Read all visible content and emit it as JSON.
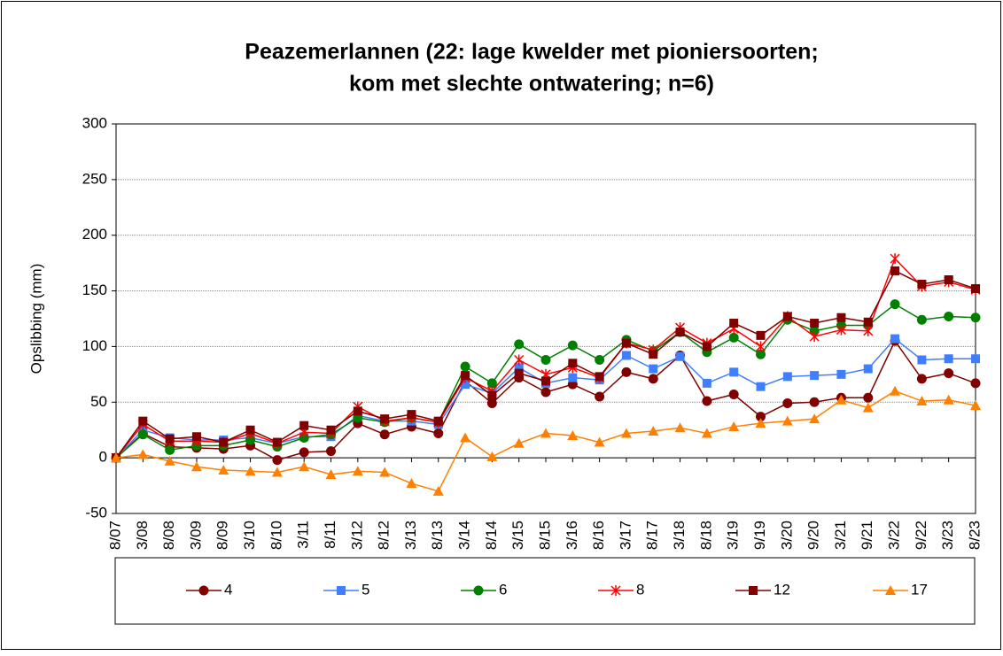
{
  "chart_data": {
    "type": "line",
    "title": [
      "Peazemerlannen (22: lage kwelder met pioniersoorten;",
      "kom met slechte ontwatering; n=6)"
    ],
    "y_label": "Opslibbing (mm)",
    "categories": [
      "8/07",
      "3/08",
      "8/08",
      "3/09",
      "8/09",
      "3/10",
      "8/10",
      "3/11",
      "8/11",
      "3/12",
      "8/12",
      "3/13",
      "8/13",
      "3/14",
      "8/14",
      "3/15",
      "8/15",
      "3/16",
      "8/16",
      "3/17",
      "8/17",
      "3/18",
      "8/18",
      "3/19",
      "9/19",
      "3/20",
      "9/20",
      "3/21",
      "9/21",
      "3/22",
      "9/22",
      "3/23",
      "8/23"
    ],
    "series": [
      {
        "name": "4",
        "color": "#800000",
        "marker": "circle",
        "values": [
          0,
          22,
          10,
          9,
          8,
          11,
          -2,
          5,
          6,
          31,
          21,
          28,
          22,
          69,
          49,
          72,
          59,
          66,
          55,
          77,
          71,
          92,
          51,
          57,
          37,
          49,
          50,
          54,
          54,
          105,
          71,
          76,
          67
        ]
      },
      {
        "name": "5",
        "color": "#3f7fff",
        "marker": "square",
        "values": [
          0,
          25,
          18,
          16,
          16,
          18,
          13,
          19,
          19,
          38,
          33,
          33,
          30,
          66,
          58,
          81,
          67,
          72,
          70,
          92,
          80,
          91,
          67,
          77,
          64,
          73,
          74,
          75,
          80,
          107,
          88,
          89,
          89
        ]
      },
      {
        "name": "6",
        "color": "#008000",
        "marker": "circle",
        "values": [
          0,
          21,
          7,
          11,
          11,
          16,
          10,
          18,
          21,
          36,
          32,
          36,
          32,
          82,
          67,
          102,
          88,
          101,
          88,
          106,
          96,
          113,
          95,
          108,
          93,
          124,
          114,
          119,
          119,
          138,
          124,
          127,
          126
        ]
      },
      {
        "name": "8",
        "color": "#ff0000",
        "marker": "star",
        "values": [
          0,
          30,
          15,
          15,
          14,
          22,
          13,
          23,
          22,
          46,
          33,
          36,
          32,
          72,
          60,
          88,
          75,
          81,
          72,
          103,
          97,
          117,
          103,
          116,
          100,
          127,
          109,
          115,
          114,
          179,
          154,
          158,
          151
        ]
      },
      {
        "name": "12",
        "color": "#800000",
        "marker": "square",
        "values": [
          0,
          33,
          17,
          19,
          14,
          25,
          14,
          29,
          25,
          42,
          35,
          39,
          33,
          74,
          56,
          76,
          69,
          85,
          73,
          103,
          93,
          113,
          100,
          121,
          110,
          127,
          121,
          126,
          122,
          168,
          156,
          160,
          152
        ]
      },
      {
        "name": "17",
        "color": "#ff8000",
        "marker": "triangle",
        "values": [
          0,
          3,
          -3,
          -8,
          -11,
          -12,
          -13,
          -8,
          -15,
          -12,
          -13,
          -23,
          -30,
          18,
          1,
          13,
          22,
          20,
          14,
          22,
          24,
          27,
          22,
          28,
          31,
          33,
          35,
          52,
          45,
          60,
          51,
          52,
          47
        ]
      }
    ],
    "ylim": [
      -50,
      300
    ],
    "yticks": [
      -50,
      0,
      50,
      100,
      150,
      200,
      250,
      300
    ],
    "grid": true,
    "legend": "bottom"
  }
}
